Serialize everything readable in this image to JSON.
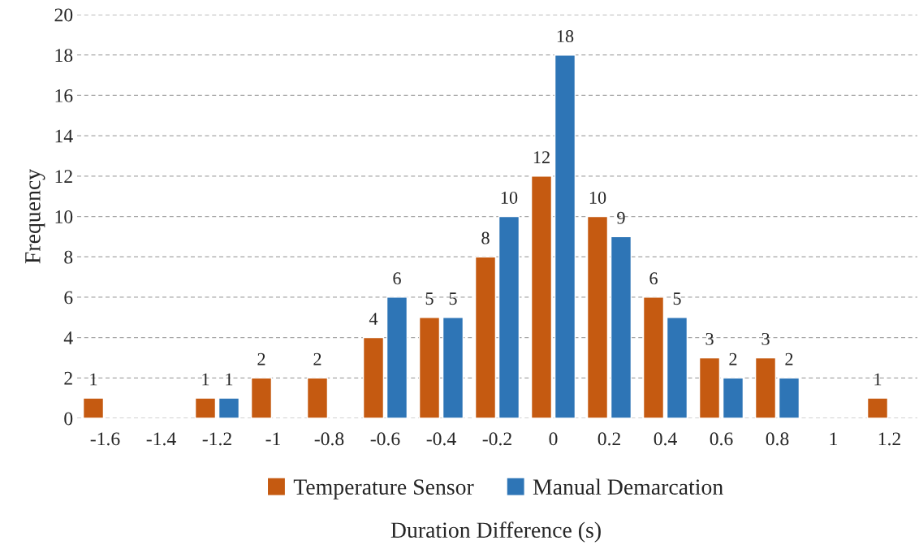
{
  "chart_data": {
    "type": "bar",
    "xlabel": "Duration Difference (s)",
    "ylabel": "Frequency",
    "categories": [
      "-1.6",
      "-1.4",
      "-1.2",
      "-1",
      "-0.8",
      "-0.6",
      "-0.4",
      "-0.2",
      "0",
      "0.2",
      "0.4",
      "0.6",
      "0.8",
      "1",
      "1.2"
    ],
    "series": [
      {
        "name": "Temperature Sensor",
        "color": "#c55a11",
        "values": [
          1,
          null,
          1,
          2,
          2,
          4,
          5,
          8,
          12,
          10,
          6,
          3,
          3,
          null,
          1
        ]
      },
      {
        "name": "Manual Demarcation",
        "color": "#2e75b6",
        "values": [
          null,
          null,
          1,
          null,
          null,
          6,
          5,
          10,
          18,
          9,
          5,
          2,
          2,
          null,
          null
        ]
      }
    ],
    "ylim": [
      0,
      20
    ],
    "yticks": [
      0,
      2,
      4,
      6,
      8,
      10,
      12,
      14,
      16,
      18,
      20
    ],
    "grid": "y",
    "legend": "bottom",
    "data_labels": true
  }
}
